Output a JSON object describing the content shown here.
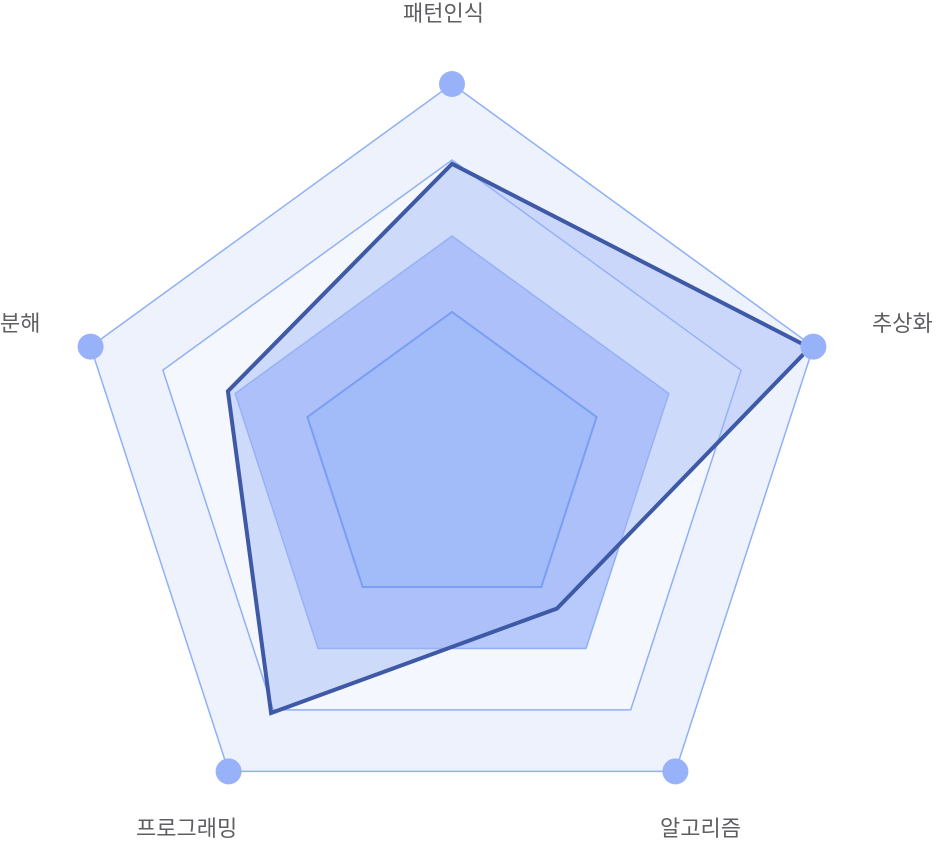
{
  "chart_data": {
    "type": "radar",
    "axes": [
      "패턴인식",
      "추상화",
      "알고리즘",
      "프로그래밍",
      "분해"
    ],
    "rings": [
      0.4,
      0.6,
      0.8,
      1.0
    ],
    "max": 1.0,
    "series": [
      {
        "values": [
          0.79,
          0.99,
          0.47,
          0.81,
          0.62
        ]
      }
    ],
    "colors": {
      "ring_fill_outer": "#eef2fd",
      "ring_fill_80": "#f5f7fe",
      "ring_fill_60": "#b8c9fb",
      "ring_fill_40": "#a5c1fc",
      "ring_stroke": "#8fb0f6",
      "inner_stroke": "#5a8af2",
      "series_stroke": "#3e5aa6",
      "series_fill": "#9fb5f7",
      "marker": "#98b2fa"
    }
  }
}
